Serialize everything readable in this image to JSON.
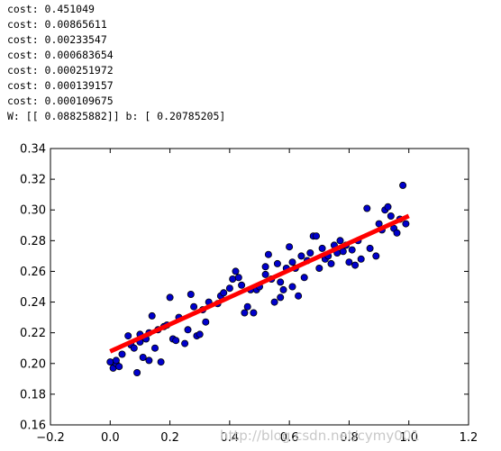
{
  "console_lines": [
    "cost: 0.451049",
    "cost: 0.00865611",
    "cost: 0.00233547",
    "cost: 0.000683654",
    "cost: 0.000251972",
    "cost: 0.000139157",
    "cost: 0.000109675",
    "W: [[ 0.08825882]] b: [ 0.20785205]"
  ],
  "watermark": "http://blog.csdn.net/cymy001",
  "colors": {
    "points": "#0000cc",
    "fit_line": "#ff0000",
    "axes": "#000000",
    "background": "#ffffff"
  },
  "chart_data": {
    "type": "scatter",
    "title": "",
    "xlabel": "",
    "ylabel": "",
    "xlim": [
      -0.2,
      1.2
    ],
    "ylim": [
      0.16,
      0.34
    ],
    "xticks": [
      -0.2,
      0.0,
      0.2,
      0.4,
      0.6,
      0.8,
      1.0,
      1.2
    ],
    "yticks": [
      0.16,
      0.18,
      0.2,
      0.22,
      0.24,
      0.26,
      0.28,
      0.3,
      0.32,
      0.34
    ],
    "xtick_labels": [
      "−0.2",
      "0.0",
      "0.2",
      "0.4",
      "0.6",
      "0.8",
      "1.0",
      "1.2"
    ],
    "ytick_labels": [
      "0.16",
      "0.18",
      "0.20",
      "0.22",
      "0.24",
      "0.26",
      "0.28",
      "0.30",
      "0.32",
      "0.34"
    ],
    "grid": false,
    "series": [
      {
        "type": "scatter",
        "x": [
          0.0,
          0.01,
          0.02,
          0.02,
          0.03,
          0.04,
          0.06,
          0.07,
          0.08,
          0.09,
          0.1,
          0.1,
          0.11,
          0.12,
          0.13,
          0.13,
          0.14,
          0.15,
          0.16,
          0.17,
          0.18,
          0.19,
          0.2,
          0.21,
          0.22,
          0.23,
          0.25,
          0.26,
          0.27,
          0.28,
          0.29,
          0.3,
          0.31,
          0.32,
          0.33,
          0.36,
          0.37,
          0.38,
          0.4,
          0.41,
          0.42,
          0.43,
          0.44,
          0.45,
          0.46,
          0.47,
          0.48,
          0.49,
          0.5,
          0.52,
          0.52,
          0.53,
          0.54,
          0.55,
          0.56,
          0.57,
          0.57,
          0.58,
          0.59,
          0.6,
          0.61,
          0.61,
          0.62,
          0.63,
          0.64,
          0.65,
          0.66,
          0.67,
          0.68,
          0.69,
          0.7,
          0.71,
          0.72,
          0.73,
          0.74,
          0.75,
          0.76,
          0.77,
          0.78,
          0.79,
          0.8,
          0.81,
          0.82,
          0.83,
          0.84,
          0.86,
          0.87,
          0.89,
          0.9,
          0.91,
          0.92,
          0.93,
          0.94,
          0.95,
          0.96,
          0.97,
          0.98,
          0.99
        ],
        "y": [
          0.201,
          0.197,
          0.2,
          0.202,
          0.198,
          0.206,
          0.218,
          0.212,
          0.21,
          0.194,
          0.214,
          0.219,
          0.204,
          0.216,
          0.202,
          0.22,
          0.231,
          0.21,
          0.222,
          0.201,
          0.224,
          0.225,
          0.243,
          0.216,
          0.215,
          0.23,
          0.213,
          0.222,
          0.245,
          0.237,
          0.218,
          0.219,
          0.235,
          0.227,
          0.24,
          0.239,
          0.244,
          0.246,
          0.249,
          0.255,
          0.26,
          0.256,
          0.251,
          0.233,
          0.237,
          0.248,
          0.233,
          0.248,
          0.25,
          0.263,
          0.258,
          0.271,
          0.255,
          0.24,
          0.265,
          0.243,
          0.253,
          0.248,
          0.262,
          0.276,
          0.266,
          0.25,
          0.262,
          0.244,
          0.27,
          0.256,
          0.267,
          0.272,
          0.283,
          0.283,
          0.262,
          0.275,
          0.268,
          0.27,
          0.265,
          0.277,
          0.272,
          0.28,
          0.273,
          0.277,
          0.266,
          0.274,
          0.264,
          0.28,
          0.268,
          0.301,
          0.275,
          0.27,
          0.291,
          0.287,
          0.3,
          0.302,
          0.296,
          0.288,
          0.285,
          0.294,
          0.316,
          0.291
        ]
      },
      {
        "type": "line",
        "x": [
          0.0,
          1.0
        ],
        "y": [
          0.20785205,
          0.29611087
        ]
      }
    ]
  }
}
